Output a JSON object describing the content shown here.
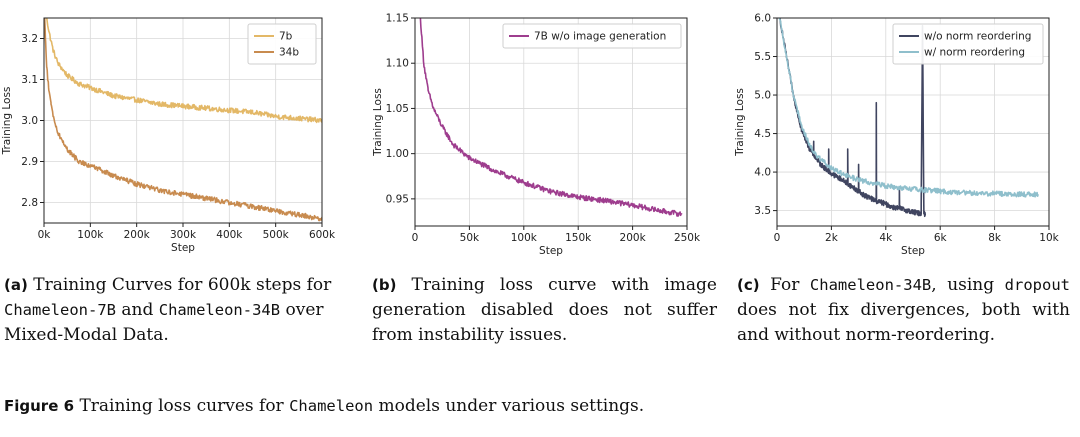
{
  "chart_data": [
    {
      "id": "a",
      "type": "line",
      "xlabel": "Step",
      "ylabel": "Training Loss",
      "xlim": [
        0,
        600000
      ],
      "ylim": [
        2.75,
        3.25
      ],
      "xticks": [
        0,
        100000,
        200000,
        300000,
        400000,
        500000,
        600000
      ],
      "xtick_labels": [
        "0k",
        "100k",
        "200k",
        "300k",
        "400k",
        "500k",
        "600k"
      ],
      "yticks": [
        2.8,
        2.9,
        3.0,
        3.1,
        3.2
      ],
      "ytick_labels": [
        "2.8",
        "2.9",
        "3.0",
        "3.1",
        "3.2"
      ],
      "grid": true,
      "legend_position": "top-right",
      "series": [
        {
          "name": "7b",
          "color": "#e3b867",
          "x": [
            0,
            5000,
            10000,
            20000,
            30000,
            50000,
            75000,
            100000,
            150000,
            200000,
            250000,
            300000,
            350000,
            400000,
            450000,
            500000,
            550000,
            600000
          ],
          "y": [
            3.32,
            3.26,
            3.22,
            3.17,
            3.14,
            3.11,
            3.09,
            3.08,
            3.06,
            3.05,
            3.04,
            3.035,
            3.03,
            3.025,
            3.02,
            3.01,
            3.005,
            3.0
          ]
        },
        {
          "name": "34b",
          "color": "#c88b4f",
          "x": [
            0,
            3000,
            6000,
            10000,
            15000,
            20000,
            30000,
            50000,
            75000,
            100000,
            150000,
            200000,
            250000,
            300000,
            350000,
            400000,
            450000,
            500000,
            550000,
            600000
          ],
          "y": [
            3.3,
            3.2,
            3.13,
            3.08,
            3.04,
            3.01,
            2.97,
            2.93,
            2.9,
            2.89,
            2.865,
            2.845,
            2.83,
            2.82,
            2.81,
            2.8,
            2.79,
            2.78,
            2.77,
            2.76
          ]
        }
      ]
    },
    {
      "id": "b",
      "type": "line",
      "xlabel": "Step",
      "ylabel": "Training Loss",
      "xlim": [
        0,
        250000
      ],
      "ylim": [
        0.92,
        1.15
      ],
      "xticks": [
        0,
        50000,
        100000,
        150000,
        200000,
        250000
      ],
      "xtick_labels": [
        "0",
        "50k",
        "100k",
        "150k",
        "200k",
        "250k"
      ],
      "yticks": [
        0.95,
        1.0,
        1.05,
        1.1,
        1.15
      ],
      "ytick_labels": [
        "0.95",
        "1.00",
        "1.05",
        "1.10",
        "1.15"
      ],
      "grid": true,
      "legend_position": "top-right",
      "series": [
        {
          "name": "7B w/o image generation",
          "color": "#9e3d8e",
          "x": [
            5000,
            8000,
            12000,
            17000,
            25000,
            35000,
            50000,
            75000,
            100000,
            125000,
            150000,
            175000,
            200000,
            225000,
            245000
          ],
          "y": [
            1.15,
            1.1,
            1.07,
            1.05,
            1.03,
            1.01,
            0.995,
            0.98,
            0.968,
            0.958,
            0.952,
            0.948,
            0.943,
            0.937,
            0.933
          ]
        }
      ]
    },
    {
      "id": "c",
      "type": "line",
      "xlabel": "Step",
      "ylabel": "Training Loss",
      "xlim": [
        0,
        10000
      ],
      "ylim": [
        3.3,
        6.0
      ],
      "xticks": [
        0,
        2000,
        4000,
        6000,
        8000,
        10000
      ],
      "xtick_labels": [
        "0",
        "2k",
        "4k",
        "6k",
        "8k",
        "10k"
      ],
      "yticks": [
        3.5,
        4.0,
        4.5,
        5.0,
        5.5,
        6.0
      ],
      "ytick_labels": [
        "3.5",
        "4.0",
        "4.5",
        "5.0",
        "5.5",
        "6.0"
      ],
      "grid": true,
      "legend_position": "top-right",
      "series": [
        {
          "name": "w/o norm reordering",
          "color": "#404560",
          "x": [
            0,
            300,
            600,
            900,
            1200,
            1400,
            1600,
            2000,
            2400,
            2800,
            3200,
            3500,
            3700,
            3900,
            4200,
            4600,
            5000,
            5300,
            5350,
            5400,
            5450
          ],
          "y": [
            6.2,
            5.6,
            5.0,
            4.55,
            4.3,
            4.2,
            4.1,
            3.98,
            3.9,
            3.8,
            3.7,
            3.65,
            3.62,
            3.6,
            3.55,
            3.52,
            3.48,
            3.46,
            5.9,
            3.46,
            3.45
          ]
        },
        {
          "name": "w/ norm reordering",
          "color": "#8fbfcc",
          "x": [
            0,
            300,
            600,
            900,
            1200,
            1500,
            2000,
            2500,
            3000,
            3500,
            4000,
            5000,
            6000,
            7000,
            8000,
            9000,
            9600
          ],
          "y": [
            6.2,
            5.6,
            5.0,
            4.6,
            4.35,
            4.2,
            4.05,
            3.96,
            3.9,
            3.86,
            3.82,
            3.78,
            3.75,
            3.73,
            3.72,
            3.71,
            3.71
          ]
        }
      ]
    }
  ],
  "captions": {
    "a": {
      "tag": "(a)",
      "t1": " Training Curves for 600k steps for ",
      "m1": "Chameleon-7B",
      "t2": " and ",
      "m2": "Chameleon-34B",
      "t3": " over Mixed-Modal Data."
    },
    "b": {
      "tag": "(b)",
      "t1": " Training loss curve with image generation disabled does not suffer from instability issues."
    },
    "c": {
      "tag": "(c)",
      "t1": " For ",
      "m1": "Chameleon-34B",
      "t2": ", using ",
      "m2": "dropout",
      "t3": " does not fix divergences, both with and without norm-reordering."
    },
    "figure": {
      "tag": "Figure 6",
      "t1": " Training loss curves for ",
      "m1": "Chameleon",
      "t2": " models under various settings."
    }
  }
}
